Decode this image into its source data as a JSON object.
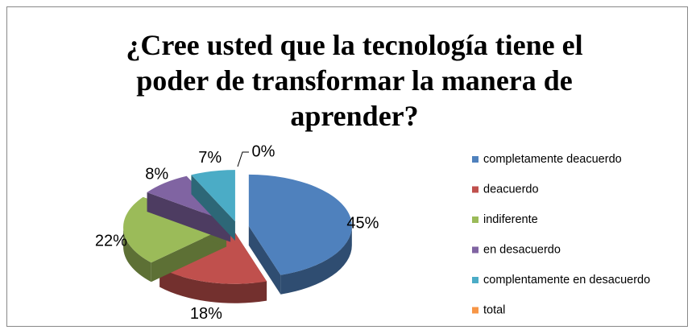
{
  "chart_data": {
    "type": "pie3d",
    "title": "¿Cree usted que la tecnología tiene el poder de transformar la manera de aprender?",
    "categories": [
      "completamente deacuerdo",
      "deacuerdo",
      "indiferente",
      "en desacuerdo",
      "complentamente en desacuerdo",
      "total"
    ],
    "values": [
      45,
      18,
      22,
      8,
      7,
      0
    ],
    "value_labels": [
      "45%",
      "18%",
      "22%",
      "8%",
      "7%",
      "0%"
    ],
    "colors": [
      "#4f81bd",
      "#c0504d",
      "#9bbb59",
      "#8064a2",
      "#4bacc6",
      "#f79646"
    ],
    "legend": "right"
  }
}
